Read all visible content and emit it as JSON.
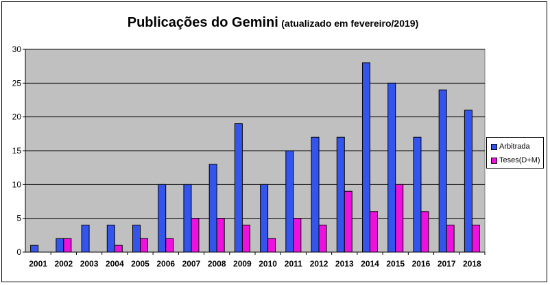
{
  "chart_data": {
    "type": "bar",
    "title": "Publicações do Gemini",
    "subtitle": "(atualizado em fevereiro/2019)",
    "categories": [
      "2001",
      "2002",
      "2003",
      "2004",
      "2005",
      "2006",
      "2007",
      "2008",
      "2009",
      "2010",
      "2011",
      "2012",
      "2013",
      "2014",
      "2015",
      "2016",
      "2017",
      "2018"
    ],
    "series": [
      {
        "name": "Arbitrada",
        "color": "#3355ee",
        "values": [
          1,
          2,
          4,
          4,
          4,
          10,
          10,
          13,
          19,
          10,
          15,
          17,
          17,
          28,
          25,
          17,
          24,
          21
        ]
      },
      {
        "name": "Teses(D+M)",
        "color": "#ee11dd",
        "values": [
          0,
          2,
          0,
          1,
          2,
          2,
          5,
          5,
          4,
          2,
          5,
          4,
          9,
          6,
          10,
          6,
          4,
          4
        ]
      }
    ],
    "ylim": [
      0,
      30
    ],
    "yticks": [
      0,
      5,
      10,
      15,
      20,
      25,
      30
    ],
    "grid": true,
    "plot_background": "#c0c0c0",
    "legend_position": "right",
    "xlabel": "",
    "ylabel": ""
  }
}
